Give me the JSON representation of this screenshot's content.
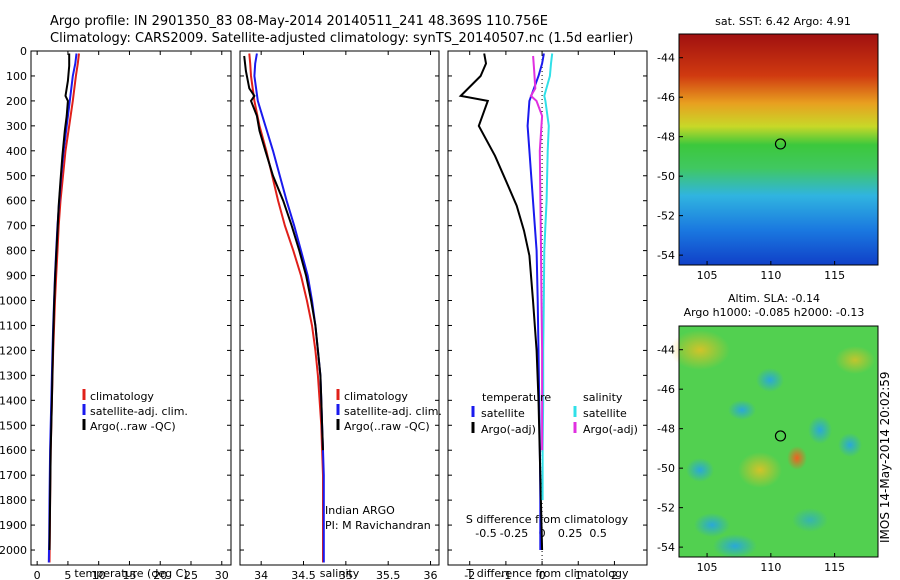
{
  "header": {
    "line1": "Argo profile: IN 2901350_83 08-May-2014 20140511_241 48.369S 110.756E",
    "line2": "Climatology: CARS2009. Satellite-adjusted climatology: synTS_20140507.nc (1.5d earlier)"
  },
  "colors": {
    "climatology": "#e0201a",
    "satellite_adj": "#1a1aee",
    "argo": "#000000",
    "satellite_salinity": "#30e0e8",
    "argo_salinity_adj": "#e030e0"
  },
  "chart_data": [
    {
      "type": "line",
      "id": "temperature",
      "xlabel": "temperature (deg C)",
      "ylabel": "",
      "xlim": [
        -1,
        31.5
      ],
      "ylim": [
        2060,
        0
      ],
      "xticks": [
        0,
        5,
        10,
        15,
        20,
        25,
        30
      ],
      "yticks": [
        0,
        100,
        200,
        300,
        400,
        500,
        600,
        700,
        800,
        900,
        1000,
        1100,
        1200,
        1300,
        1400,
        1500,
        1600,
        1700,
        1800,
        1900,
        2000
      ],
      "legend": [
        "climatology",
        "satellite-adj. clim.",
        "Argo(..raw -QC)"
      ],
      "series": [
        {
          "name": "climatology",
          "color_key": "climatology",
          "x": [
            6.8,
            6.6,
            6.3,
            5.8,
            5.2,
            4.6,
            4.2,
            3.8,
            3.5,
            3.3,
            3.1,
            2.9,
            2.75,
            2.6,
            2.5,
            2.4,
            2.3,
            2.2,
            2.1,
            2.05,
            2.0
          ],
          "y": [
            10,
            50,
            100,
            200,
            300,
            400,
            500,
            600,
            700,
            800,
            900,
            1000,
            1100,
            1200,
            1300,
            1400,
            1500,
            1600,
            1800,
            1950,
            2050
          ]
        },
        {
          "name": "satellite-adj. clim.",
          "color_key": "satellite_adj",
          "x": [
            6.4,
            6.2,
            5.8,
            5.3,
            4.8,
            4.3,
            3.9,
            3.6,
            3.3,
            3.1,
            2.9,
            2.75,
            2.6,
            2.5,
            2.4,
            2.3,
            2.2,
            2.1,
            2.0,
            1.95,
            1.9
          ],
          "y": [
            10,
            50,
            100,
            200,
            300,
            400,
            500,
            600,
            700,
            800,
            900,
            1000,
            1100,
            1200,
            1300,
            1400,
            1500,
            1600,
            1800,
            1950,
            2050
          ]
        },
        {
          "name": "Argo(..raw -QC)",
          "color_key": "argo",
          "x": [
            5.2,
            5.2,
            5.0,
            4.6,
            5.0,
            4.8,
            4.5,
            4.1,
            3.8,
            3.5,
            3.3,
            3.1,
            2.9,
            2.75,
            2.6,
            2.5,
            2.4,
            2.3,
            2.2,
            2.1,
            2.05,
            2.0
          ],
          "y": [
            10,
            60,
            120,
            180,
            200,
            260,
            320,
            420,
            520,
            620,
            720,
            820,
            920,
            1020,
            1150,
            1280,
            1400,
            1500,
            1600,
            1800,
            1900,
            2000
          ]
        }
      ]
    },
    {
      "type": "line",
      "id": "salinity",
      "xlabel": "salinity",
      "ylabel": "",
      "xlim": [
        33.75,
        36.1
      ],
      "ylim": [
        2060,
        0
      ],
      "xticks": [
        34,
        34.5,
        35,
        35.5,
        36
      ],
      "legend": [
        "climatology",
        "satellite-adj. clim.",
        "Argo(..raw -QC)"
      ],
      "annotations": [
        "Indian ARGO",
        "PI: M Ravichandran"
      ],
      "series": [
        {
          "name": "climatology",
          "color_key": "climatology",
          "x": [
            33.86,
            33.87,
            33.88,
            33.92,
            33.98,
            34.06,
            34.13,
            34.2,
            34.28,
            34.38,
            34.47,
            34.54,
            34.6,
            34.64,
            34.67,
            34.69,
            34.71,
            34.72,
            34.73,
            34.73,
            34.73
          ],
          "y": [
            10,
            50,
            100,
            200,
            300,
            400,
            500,
            600,
            700,
            800,
            900,
            1000,
            1100,
            1200,
            1300,
            1400,
            1500,
            1600,
            1700,
            1850,
            2050
          ]
        },
        {
          "name": "satellite-adj. clim.",
          "color_key": "satellite_adj",
          "x": [
            33.95,
            33.93,
            33.92,
            33.96,
            34.05,
            34.14,
            34.22,
            34.3,
            34.39,
            34.47,
            34.55,
            34.6,
            34.64,
            34.67,
            34.7,
            34.71,
            34.72,
            34.73,
            34.74,
            34.74,
            34.74
          ],
          "y": [
            10,
            50,
            100,
            200,
            300,
            400,
            500,
            600,
            700,
            800,
            900,
            1000,
            1100,
            1200,
            1300,
            1400,
            1500,
            1600,
            1700,
            1850,
            2050
          ]
        },
        {
          "name": "Argo(..raw -QC)",
          "color_key": "argo",
          "x": [
            33.8,
            33.82,
            33.86,
            33.92,
            33.88,
            33.95,
            33.98,
            34.05,
            34.14,
            34.26,
            34.36,
            34.45,
            34.53,
            34.59,
            34.64,
            34.67,
            34.7,
            34.71,
            34.72,
            34.73
          ],
          "y": [
            20,
            80,
            150,
            180,
            200,
            260,
            320,
            400,
            500,
            600,
            700,
            800,
            900,
            1000,
            1100,
            1200,
            1300,
            1400,
            1500,
            1600
          ]
        }
      ]
    },
    {
      "type": "line",
      "id": "difference",
      "xlabel": "T difference from climatology",
      "xlabel_top": "S difference from climatology",
      "ylabel": "",
      "xlim": [
        -2.6,
        2.9
      ],
      "ylim": [
        2060,
        0
      ],
      "xticks": [
        -2,
        -1,
        0,
        1,
        2
      ],
      "xticks_top": [
        -0.5,
        -0.25,
        0,
        0.25,
        0.5
      ],
      "legend_temperature_title": "temperature",
      "legend_salinity_title": "salinity",
      "legend": [
        "satellite",
        "Argo(-adj)",
        "satellite",
        "Argo(-adj)"
      ],
      "series": [
        {
          "name": "temperature satellite",
          "color_key": "satellite_adj",
          "x": [
            0.05,
            0.0,
            -0.1,
            -0.35,
            -0.4,
            -0.35,
            -0.3,
            -0.25,
            -0.2,
            -0.15,
            -0.12,
            -0.1,
            -0.08,
            -0.06,
            -0.05,
            -0.05
          ],
          "y": [
            10,
            50,
            100,
            200,
            300,
            400,
            500,
            600,
            700,
            800,
            1000,
            1200,
            1400,
            1600,
            1800,
            2000
          ]
        },
        {
          "name": "temperature Argo(-adj)",
          "color_key": "argo",
          "x": [
            -1.6,
            -1.55,
            -1.7,
            -2.25,
            -1.5,
            -1.75,
            -1.3,
            -1.0,
            -0.7,
            -0.5,
            -0.35,
            -0.25,
            -0.15,
            -0.1,
            -0.05,
            0.0
          ],
          "y": [
            10,
            50,
            100,
            180,
            200,
            300,
            420,
            520,
            620,
            720,
            820,
            1000,
            1200,
            1400,
            1700,
            2000
          ]
        },
        {
          "name": "salinity satellite",
          "color_key": "satellite_salinity",
          "x": [
            0.09,
            0.08,
            0.07,
            0.02,
            0.03,
            0.06,
            0.05,
            0.04,
            0.03,
            0.02,
            0.015,
            0.01,
            0.01,
            0.005,
            0.005
          ],
          "y": [
            10,
            50,
            100,
            180,
            200,
            300,
            400,
            600,
            700,
            800,
            1000,
            1200,
            1400,
            1600,
            1800
          ]
        },
        {
          "name": "salinity Argo(-adj)",
          "color_key": "argo_salinity_adj",
          "x": [
            -0.08,
            -0.07,
            -0.06,
            -0.1,
            -0.05,
            0.0,
            -0.02,
            -0.015,
            -0.01,
            -0.005,
            0.0,
            0.0,
            0.0,
            0.0
          ],
          "y": [
            20,
            80,
            150,
            180,
            200,
            260,
            400,
            600,
            800,
            1000,
            1200,
            1400,
            1500,
            1600
          ]
        }
      ]
    },
    {
      "type": "heatmap",
      "id": "sst-map",
      "title": "sat. SST: 6.42  Argo: 4.91",
      "xlim": [
        102.8,
        118.4
      ],
      "ylim": [
        -54.5,
        -42.8
      ],
      "xticks": [
        105,
        110,
        115
      ],
      "yticks": [
        -44,
        -46,
        -48,
        -50,
        -52,
        -54
      ],
      "marker": {
        "lon": 110.756,
        "lat": -48.369
      }
    },
    {
      "type": "heatmap",
      "id": "sla-map",
      "title": "Altim. SLA: -0.14",
      "subtitle": "Argo h1000: -0.085  h2000: -0.13",
      "xlim": [
        102.8,
        118.4
      ],
      "ylim": [
        -54.5,
        -42.8
      ],
      "xticks": [
        105,
        110,
        115
      ],
      "yticks": [
        -44,
        -46,
        -48,
        -50,
        -52,
        -54
      ],
      "marker": {
        "lon": 110.756,
        "lat": -48.369
      }
    }
  ],
  "footer": {
    "stamp": "IMOS 14-May-2014 20:02:59"
  }
}
